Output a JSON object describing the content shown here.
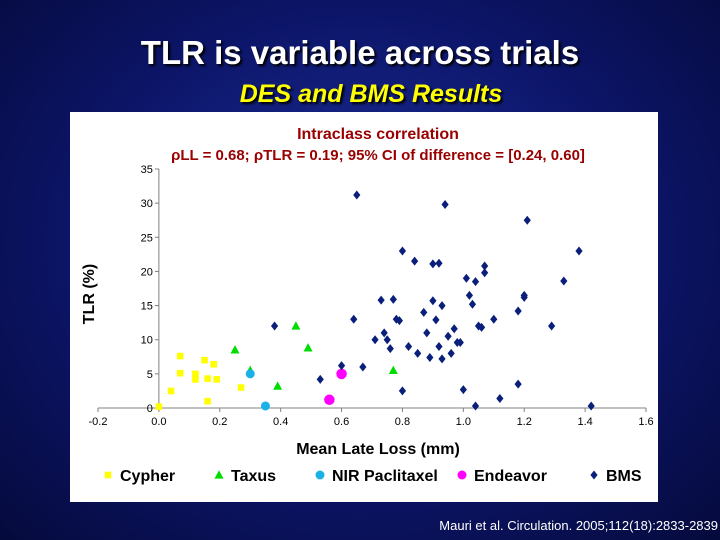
{
  "slide": {
    "title": "TLR is variable across trials",
    "subtitle": "DES and BMS Results",
    "citation": "Mauri et al. Circulation. 2005;112(18):2833-2839"
  },
  "chart_data": {
    "type": "scatter",
    "title": "Intraclass correlation",
    "subtitle": "ρLL = 0.68; ρTLR = 0.19; 95% CI of difference = [0.24, 0.60]",
    "xlabel": "Mean Late Loss (mm)",
    "ylabel": "TLR (%)",
    "xlim": [
      -0.2,
      1.6
    ],
    "ylim": [
      0,
      35
    ],
    "xticks": [
      "-0.2",
      "0.0",
      "0.2",
      "0.4",
      "0.6",
      "0.8",
      "1.0",
      "1.2",
      "1.4",
      "1.6"
    ],
    "yticks": [
      "0",
      "5",
      "10",
      "15",
      "20",
      "25",
      "30",
      "35"
    ],
    "grid": false,
    "legend_position": "bottom",
    "series": [
      {
        "name": "Cypher",
        "marker": "square",
        "color": "#ffff00",
        "points": [
          [
            0.0,
            0.2
          ],
          [
            0.04,
            2.5
          ],
          [
            0.07,
            7.6
          ],
          [
            0.07,
            5.1
          ],
          [
            0.12,
            5.0
          ],
          [
            0.12,
            4.2
          ],
          [
            0.15,
            7.0
          ],
          [
            0.16,
            4.3
          ],
          [
            0.18,
            6.4
          ],
          [
            0.19,
            4.2
          ],
          [
            0.16,
            1.0
          ],
          [
            0.27,
            3.0
          ]
        ]
      },
      {
        "name": "Taxus",
        "marker": "triangle",
        "color": "#00dd00",
        "points": [
          [
            0.25,
            8.5
          ],
          [
            0.3,
            5.5
          ],
          [
            0.45,
            12.0
          ],
          [
            0.49,
            8.8
          ],
          [
            0.39,
            3.2
          ],
          [
            0.77,
            5.5
          ]
        ]
      },
      {
        "name": "NIR Paclitaxel",
        "marker": "circle",
        "color": "#1ab2e6",
        "points": [
          [
            0.3,
            5.0
          ],
          [
            0.35,
            0.3
          ]
        ]
      },
      {
        "name": "Endeavor",
        "marker": "circle",
        "color": "#ff00ff",
        "points": [
          [
            0.6,
            5.0
          ],
          [
            0.56,
            1.2
          ]
        ]
      },
      {
        "name": "BMS",
        "marker": "diamond",
        "color": "#0a1f7a",
        "points": [
          [
            0.38,
            12.0
          ],
          [
            0.53,
            4.2
          ],
          [
            0.6,
            6.2
          ],
          [
            0.64,
            13.0
          ],
          [
            0.65,
            31.2
          ],
          [
            0.67,
            6.0
          ],
          [
            0.71,
            10.0
          ],
          [
            0.73,
            15.8
          ],
          [
            0.74,
            11.0
          ],
          [
            0.75,
            10.0
          ],
          [
            0.76,
            8.7
          ],
          [
            0.77,
            15.9
          ],
          [
            0.78,
            13.0
          ],
          [
            0.79,
            12.8
          ],
          [
            0.8,
            23.0
          ],
          [
            0.8,
            2.5
          ],
          [
            0.82,
            9.0
          ],
          [
            0.84,
            21.5
          ],
          [
            0.85,
            8.0
          ],
          [
            0.87,
            14.0
          ],
          [
            0.88,
            11.0
          ],
          [
            0.89,
            7.4
          ],
          [
            0.9,
            21.1
          ],
          [
            0.9,
            15.7
          ],
          [
            0.91,
            12.9
          ],
          [
            0.92,
            9.0
          ],
          [
            0.92,
            21.2
          ],
          [
            0.93,
            7.2
          ],
          [
            0.93,
            15.0
          ],
          [
            0.94,
            29.8
          ],
          [
            0.95,
            10.5
          ],
          [
            0.96,
            8.0
          ],
          [
            0.97,
            11.6
          ],
          [
            0.98,
            9.6
          ],
          [
            0.99,
            9.6
          ],
          [
            1.0,
            2.7
          ],
          [
            1.01,
            19.0
          ],
          [
            1.02,
            16.5
          ],
          [
            1.03,
            15.2
          ],
          [
            1.04,
            18.5
          ],
          [
            1.04,
            0.3
          ],
          [
            1.05,
            12.0
          ],
          [
            1.06,
            11.8
          ],
          [
            1.07,
            20.8
          ],
          [
            1.07,
            19.8
          ],
          [
            1.1,
            13.0
          ],
          [
            1.12,
            1.4
          ],
          [
            1.18,
            14.2
          ],
          [
            1.18,
            3.5
          ],
          [
            1.21,
            27.5
          ],
          [
            1.2,
            16.5
          ],
          [
            1.2,
            16.2
          ],
          [
            1.29,
            12.0
          ],
          [
            1.33,
            18.6
          ],
          [
            1.38,
            23.0
          ],
          [
            1.42,
            0.3
          ]
        ]
      }
    ]
  }
}
